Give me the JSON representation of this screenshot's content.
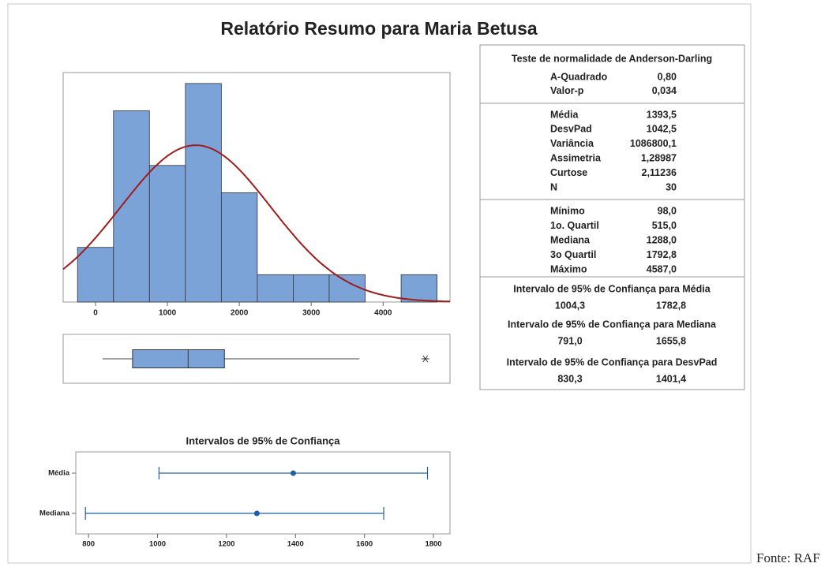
{
  "title": "Relatório Resumo para Maria Betusa",
  "footer": "Fonte: RAF",
  "chart_data": [
    {
      "type": "histogram",
      "bins": [
        -250,
        250,
        750,
        1250,
        1750,
        2250,
        2750,
        3250,
        3750,
        4250,
        4750
      ],
      "counts": [
        2,
        7,
        5,
        8,
        4,
        1,
        1,
        1,
        0,
        1
      ],
      "color": "#7ba3d8",
      "curve_color": "#a01c1c",
      "fit": {
        "mean": 1393.5,
        "sd": 1042.5,
        "n": 30
      },
      "xlim": [
        -450,
        4930
      ],
      "xticks": [
        0,
        1000,
        2000,
        3000,
        4000
      ],
      "ylim": [
        0,
        8.4
      ]
    },
    {
      "type": "box",
      "whisker_low": 98,
      "q1": 515,
      "median": 1288,
      "q3": 1792.8,
      "whisker_high": 3670,
      "outliers": [
        4587
      ],
      "color": "#7ba3d8",
      "xlim": [
        -450,
        4930
      ]
    },
    {
      "type": "interval",
      "title": "Intervalos de 95% de Confiança",
      "categories": [
        "Média",
        "Mediana"
      ],
      "center": [
        1393.5,
        1288
      ],
      "low": [
        1004.3,
        791
      ],
      "high": [
        1782.8,
        1655.8
      ],
      "color": "#1f5fa8",
      "xlim": [
        763,
        1848
      ],
      "xticks": [
        800,
        1000,
        1200,
        1400,
        1600,
        1800
      ]
    }
  ],
  "stats": {
    "normality": {
      "title": "Teste de normalidade de Anderson-Darling",
      "rows": [
        [
          "A-Quadrado",
          "0,80"
        ],
        [
          "Valor-p",
          "0,034"
        ]
      ]
    },
    "moments": {
      "rows": [
        [
          "Média",
          "1393,5"
        ],
        [
          "DesvPad",
          "1042,5"
        ],
        [
          "Variância",
          "1086800,1"
        ],
        [
          "Assimetria",
          "1,28987"
        ],
        [
          "Curtose",
          "2,11236"
        ],
        [
          "N",
          "30"
        ]
      ]
    },
    "quartiles": {
      "rows": [
        [
          "Mínimo",
          "98,0"
        ],
        [
          "1o. Quartil",
          "515,0"
        ],
        [
          "Mediana",
          "1288,0"
        ],
        [
          "3o Quartil",
          "1792,8"
        ],
        [
          "Máximo",
          "4587,0"
        ]
      ]
    },
    "intervals": [
      {
        "title": "Intervalo de 95% de Confiança para Média",
        "values": [
          "1004,3",
          "1782,8"
        ]
      },
      {
        "title": "Intervalo de 95% de Confiança  para Mediana",
        "values": [
          "791,0",
          "1655,8"
        ]
      },
      {
        "title": "Intervalo de 95% de Confiança  para DesvPad",
        "values": [
          "830,3",
          "1401,4"
        ]
      }
    ]
  }
}
